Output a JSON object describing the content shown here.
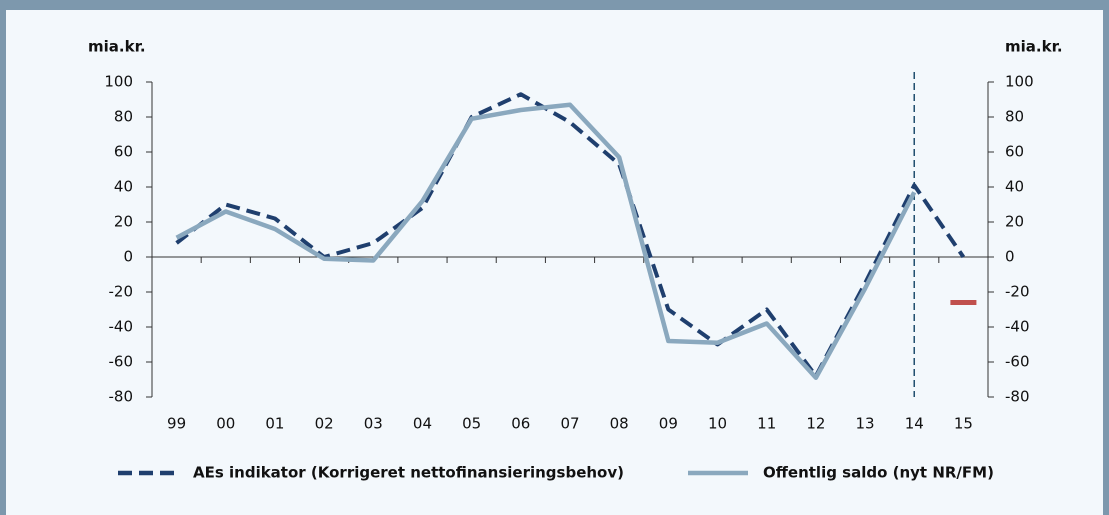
{
  "chart_data": {
    "type": "line",
    "y_label": "mia.kr.",
    "y2_label": "mia.kr.",
    "categories": [
      "99",
      "00",
      "01",
      "02",
      "03",
      "04",
      "05",
      "06",
      "07",
      "08",
      "09",
      "10",
      "11",
      "12",
      "13",
      "14",
      "15"
    ],
    "series": [
      {
        "name": "AEs indikator (Korrigeret nettofinansieringsbehov)",
        "color": "#1f3f6e",
        "style": "dashed",
        "values": [
          8,
          30,
          22,
          0,
          8,
          28,
          80,
          93,
          77,
          53,
          -30,
          -50,
          -30,
          -68,
          -15,
          41,
          0
        ]
      },
      {
        "name": "Offentlig saldo (nyt NR/FM)",
        "color": "#8aa8be",
        "style": "solid",
        "values": [
          11,
          26,
          16,
          -1,
          -2,
          32,
          79,
          84,
          87,
          57,
          -48,
          -49,
          -38,
          -69,
          -18,
          37,
          null
        ]
      },
      {
        "color": "#c0504d",
        "style": "marker",
        "values": [
          null,
          null,
          null,
          null,
          null,
          null,
          null,
          null,
          null,
          null,
          null,
          null,
          null,
          null,
          null,
          null,
          -26
        ]
      }
    ],
    "ylim": [
      -80,
      100
    ],
    "yticks": [
      -80,
      -60,
      -40,
      -20,
      0,
      20,
      40,
      60,
      80,
      100
    ],
    "y2lim": [
      -80,
      100
    ],
    "y2ticks": [
      -80,
      -60,
      -40,
      -20,
      0,
      20,
      40,
      60,
      80,
      100
    ],
    "grid": false,
    "legend": "bottom"
  }
}
